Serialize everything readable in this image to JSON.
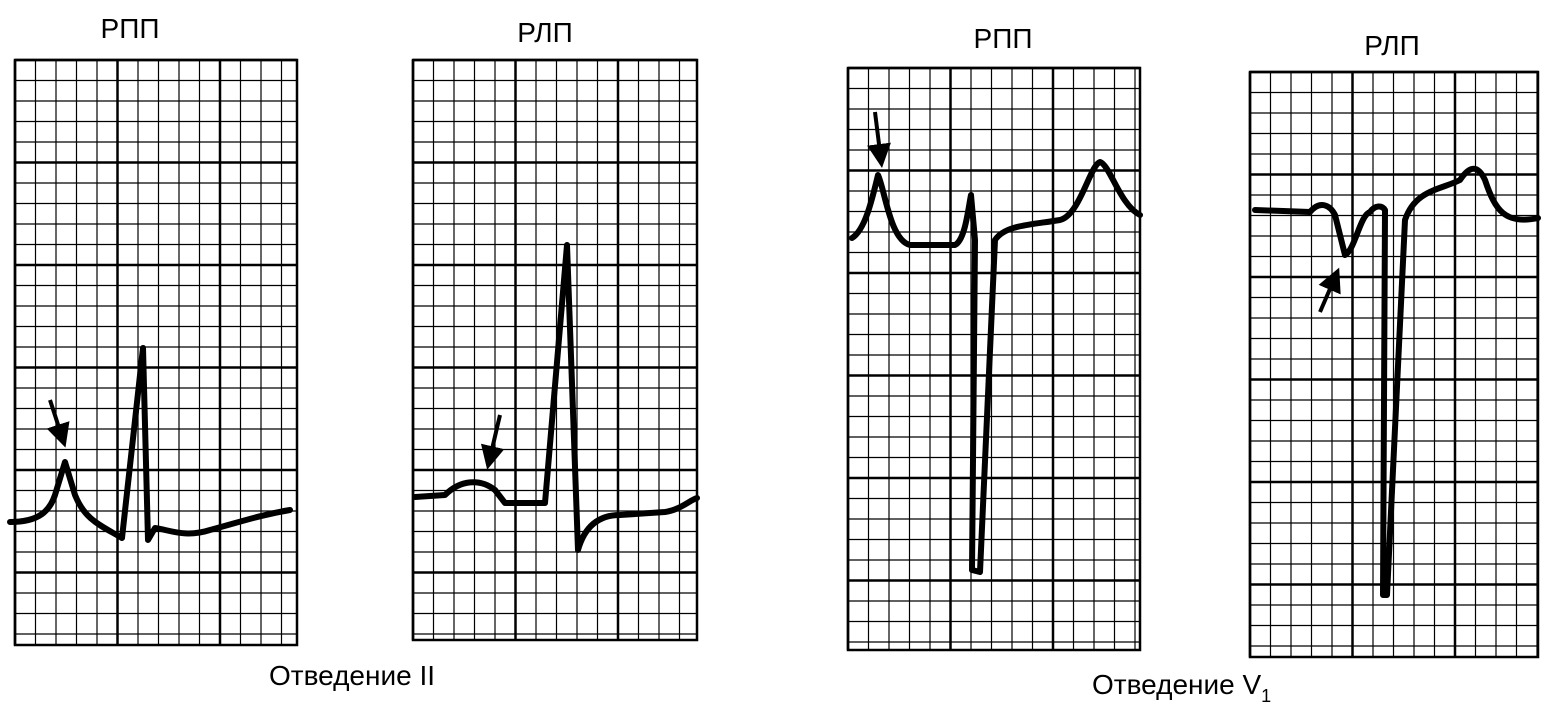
{
  "panels": [
    {
      "label": "РПП"
    },
    {
      "label": "РЛП"
    },
    {
      "label": "РПП"
    },
    {
      "label": "РЛП"
    }
  ],
  "captions": [
    {
      "text": "Отведение II"
    },
    {
      "text": "Отведение V",
      "subscript": "1"
    }
  ]
}
